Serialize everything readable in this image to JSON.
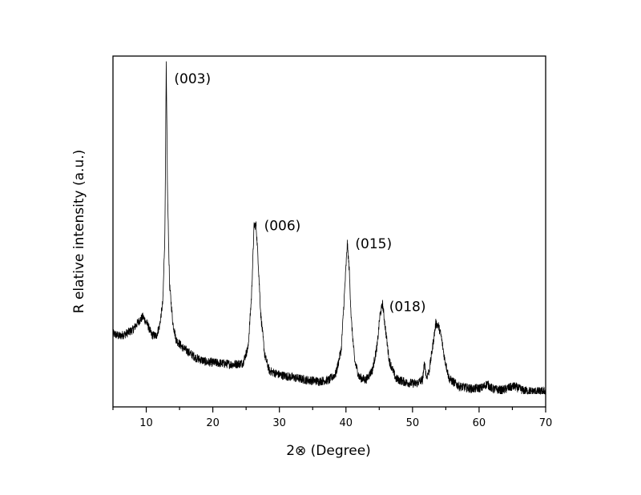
{
  "chart_data": {
    "type": "line",
    "title": "",
    "xlabel": "2⊗ (Degree)",
    "ylabel": "R elative intensity (a.u.)",
    "xlim": [
      5,
      70
    ],
    "x_ticks": [
      10,
      20,
      30,
      40,
      50,
      60,
      70
    ],
    "y_ticks_shown": false,
    "grid": false,
    "legend": "none",
    "line_color": "#000000",
    "series": [
      {
        "x": [
          5,
          6,
          7,
          8,
          8.8,
          9.5,
          10.2,
          10.8,
          11.5,
          12.0,
          12.5,
          12.8,
          13.0,
          13.2,
          13.5,
          14.0,
          14.5,
          15.5,
          16.5,
          17.5,
          19,
          21,
          23,
          24.5,
          25.3,
          25.8,
          26.2,
          26.5,
          26.8,
          27.2,
          27.8,
          28.5,
          30,
          32,
          34,
          36,
          37.5,
          38.5,
          39.3,
          39.8,
          40.2,
          40.5,
          40.8,
          41.3,
          42.0,
          43.0,
          44.0,
          44.7,
          45.1,
          45.5,
          45.9,
          46.5,
          47.5,
          49,
          50.5,
          51.5,
          51.8,
          52.1,
          52.5,
          53.0,
          53.5,
          53.9,
          54.3,
          54.8,
          55.5,
          57,
          59,
          60.5,
          61.2,
          62,
          63.5,
          64.5,
          65.3,
          66.5,
          68,
          70
        ],
        "y": [
          0.47,
          0.45,
          0.47,
          0.5,
          0.56,
          0.6,
          0.54,
          0.46,
          0.45,
          0.53,
          0.72,
          1.25,
          2.55,
          1.55,
          0.85,
          0.55,
          0.42,
          0.36,
          0.32,
          0.28,
          0.25,
          0.24,
          0.23,
          0.24,
          0.36,
          0.75,
          1.31,
          1.31,
          1.05,
          0.62,
          0.3,
          0.18,
          0.15,
          0.13,
          0.11,
          0.1,
          0.11,
          0.16,
          0.35,
          0.8,
          1.17,
          0.96,
          0.58,
          0.26,
          0.13,
          0.11,
          0.19,
          0.38,
          0.61,
          0.7,
          0.52,
          0.26,
          0.12,
          0.09,
          0.08,
          0.11,
          0.24,
          0.13,
          0.18,
          0.36,
          0.55,
          0.53,
          0.45,
          0.28,
          0.12,
          0.06,
          0.04,
          0.05,
          0.08,
          0.04,
          0.03,
          0.05,
          0.06,
          0.03,
          0.02,
          0.02
        ]
      }
    ],
    "annotations": [
      {
        "text": "(003)",
        "x": 14.2,
        "y": 2.45
      },
      {
        "text": "(006)",
        "x": 27.7,
        "y": 1.31
      },
      {
        "text": "(015)",
        "x": 41.4,
        "y": 1.17
      },
      {
        "text": "(018)",
        "x": 46.5,
        "y": 0.68
      }
    ]
  }
}
